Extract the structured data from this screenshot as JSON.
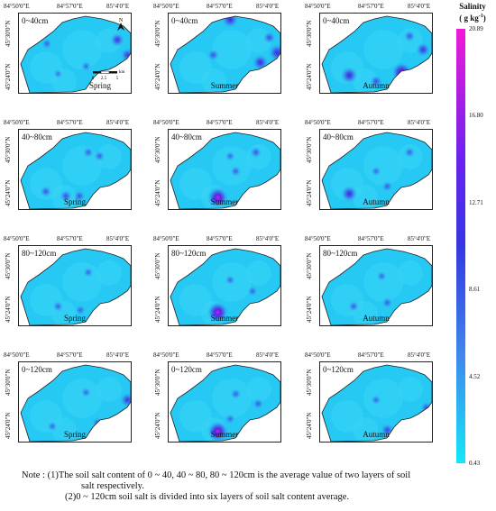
{
  "coords": {
    "top_left": "84°50'0\"E",
    "top_mid": "84°57'0\"E",
    "top_right": "85°4'0\"E",
    "side_top": "45°30'0\"N",
    "side_bottom": "45°24'0\"N"
  },
  "map_labels": {
    "north": "N",
    "scale_unit": "km",
    "scale_ticks": [
      "0",
      "2.5",
      "5"
    ]
  },
  "panels": [
    {
      "depth": "0~40cm",
      "season": "Spring",
      "spots": [
        [
          0.88,
          0.35,
          0.5
        ],
        [
          0.97,
          0.55,
          0.45
        ],
        [
          0.25,
          0.4,
          0.22
        ],
        [
          0.6,
          0.7,
          0.2
        ],
        [
          0.35,
          0.8,
          0.15
        ]
      ]
    },
    {
      "depth": "0~40cm",
      "season": "Summer",
      "spots": [
        [
          0.55,
          0.08,
          0.65
        ],
        [
          0.97,
          0.52,
          0.7
        ],
        [
          0.82,
          0.65,
          0.6
        ],
        [
          0.68,
          1.0,
          0.9
        ],
        [
          0.4,
          0.55,
          0.3
        ],
        [
          0.9,
          0.32,
          0.35
        ]
      ]
    },
    {
      "depth": "0~40cm",
      "season": "Autumn",
      "spots": [
        [
          0.26,
          0.82,
          0.7
        ],
        [
          0.73,
          0.78,
          0.85
        ],
        [
          0.92,
          0.48,
          0.5
        ],
        [
          0.5,
          0.9,
          0.35
        ],
        [
          0.8,
          0.3,
          0.3
        ]
      ]
    },
    {
      "depth": "40~80cm",
      "season": "Spring",
      "spots": [
        [
          0.24,
          0.82,
          0.3
        ],
        [
          0.42,
          0.88,
          0.35
        ],
        [
          0.54,
          0.88,
          0.3
        ],
        [
          0.62,
          0.3,
          0.25
        ],
        [
          0.72,
          0.35,
          0.25
        ]
      ]
    },
    {
      "depth": "40~80cm",
      "season": "Summer",
      "spots": [
        [
          0.44,
          0.9,
          0.95
        ],
        [
          0.6,
          0.55,
          0.25
        ],
        [
          0.78,
          0.3,
          0.3
        ],
        [
          0.55,
          0.35,
          0.2
        ]
      ]
    },
    {
      "depth": "40~80cm",
      "season": "Autumn",
      "spots": [
        [
          0.26,
          0.85,
          0.65
        ],
        [
          0.6,
          0.75,
          0.25
        ],
        [
          0.8,
          0.3,
          0.25
        ],
        [
          0.5,
          0.55,
          0.2
        ]
      ]
    },
    {
      "depth": "80~120cm",
      "season": "Spring",
      "spots": [
        [
          0.35,
          0.8,
          0.25
        ],
        [
          0.62,
          0.35,
          0.2
        ],
        [
          0.55,
          0.85,
          0.2
        ]
      ]
    },
    {
      "depth": "80~120cm",
      "season": "Summer",
      "spots": [
        [
          0.44,
          0.88,
          0.95
        ],
        [
          0.55,
          0.45,
          0.2
        ],
        [
          0.75,
          0.6,
          0.2
        ]
      ]
    },
    {
      "depth": "80~120cm",
      "season": "Autumn",
      "spots": [
        [
          0.3,
          0.8,
          0.25
        ],
        [
          0.6,
          0.75,
          0.25
        ],
        [
          0.55,
          0.4,
          0.2
        ]
      ]
    },
    {
      "depth": "0~120cm",
      "season": "Spring",
      "spots": [
        [
          0.97,
          0.5,
          0.5
        ],
        [
          0.3,
          0.85,
          0.2
        ],
        [
          0.6,
          0.4,
          0.2
        ],
        [
          0.7,
          0.8,
          0.2
        ]
      ]
    },
    {
      "depth": "0~120cm",
      "season": "Summer",
      "spots": [
        [
          0.44,
          0.92,
          0.95
        ],
        [
          0.6,
          0.42,
          0.25
        ],
        [
          0.8,
          0.55,
          0.25
        ],
        [
          0.55,
          0.75,
          0.2
        ]
      ]
    },
    {
      "depth": "0~120cm",
      "season": "Autumn",
      "spots": [
        [
          0.6,
          0.9,
          0.4
        ],
        [
          0.95,
          0.6,
          0.3
        ],
        [
          0.5,
          0.5,
          0.2
        ]
      ]
    }
  ],
  "legend": {
    "title_line1": "Salinity",
    "title_line2": "( g kg",
    "title_sup": "-1",
    "title_end": ")",
    "ticks": [
      "20.89",
      "16.80",
      "12.71",
      "8.61",
      "4.52",
      "0.43"
    ],
    "colors": {
      "high": "#f11ad6",
      "mid": "#3537e2",
      "low": "#14e7f8"
    }
  },
  "note": {
    "line1": "Note : (1)The soil salt content of 0 ~ 40, 40 ~ 80, 80 ~ 120cm is the average value of two layers of soil",
    "line2": "salt respectively.",
    "line3": "(2)0 ~ 120cm soil salt is divided into six layers of soil salt content average."
  }
}
